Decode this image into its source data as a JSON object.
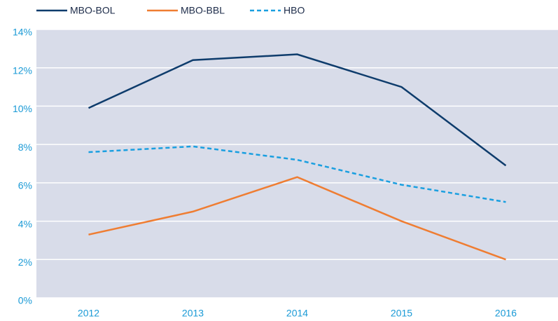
{
  "chart_data": {
    "type": "line",
    "categories": [
      "2012",
      "2013",
      "2014",
      "2015",
      "2016"
    ],
    "series": [
      {
        "name": "MBO-BOL",
        "color": "#0e3c6c",
        "dashed": false,
        "values": [
          9.9,
          12.4,
          12.7,
          11.0,
          6.9
        ]
      },
      {
        "name": "MBO-BBL",
        "color": "#ef7d32",
        "dashed": false,
        "values": [
          3.3,
          4.5,
          6.3,
          4.0,
          2.0
        ]
      },
      {
        "name": "HBO",
        "color": "#1a9fe0",
        "dashed": true,
        "values": [
          7.6,
          7.9,
          7.2,
          5.9,
          5.0
        ]
      }
    ],
    "ylim": [
      0,
      14
    ],
    "yticks": [
      {
        "value": 0,
        "label": "0%"
      },
      {
        "value": 2,
        "label": "2%"
      },
      {
        "value": 4,
        "label": "4%"
      },
      {
        "value": 6,
        "label": "6%"
      },
      {
        "value": 8,
        "label": "8%"
      },
      {
        "value": 10,
        "label": "10%"
      },
      {
        "value": 12,
        "label": "12%"
      },
      {
        "value": 14,
        "label": "14%"
      }
    ],
    "grid": true,
    "legend": "top-left",
    "background": "#d8dce9"
  }
}
